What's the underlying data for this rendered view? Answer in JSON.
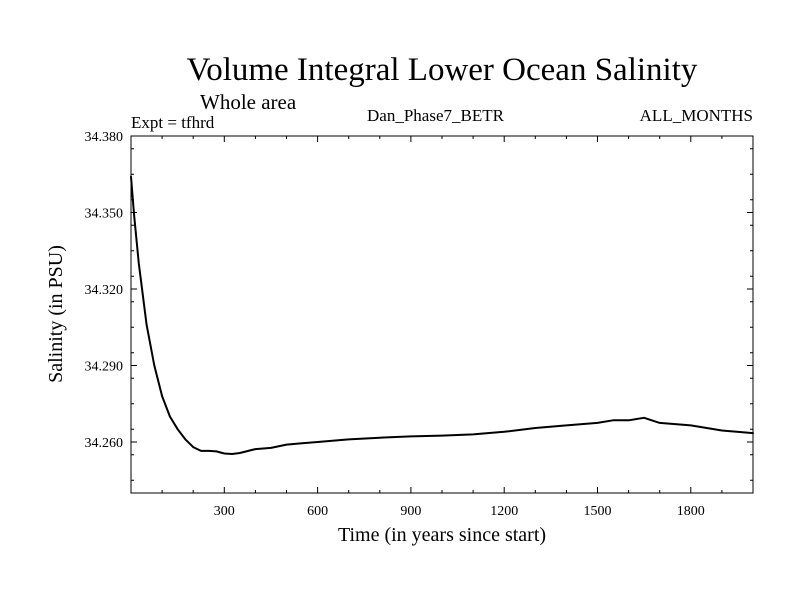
{
  "chart_data": {
    "type": "line",
    "title": "Volume Integral Lower Ocean Salinity",
    "subtitle": "Whole area",
    "experiment": "Expt = tfhrd",
    "run": "Dan_Phase7_BETR",
    "period": "ALL_MONTHS",
    "xlabel": "Time (in years since start)",
    "ylabel": "Salinity (in PSU)",
    "xlim": [
      0,
      2000
    ],
    "ylim": [
      34.24,
      34.38
    ],
    "xticks": [
      300,
      600,
      900,
      1200,
      1500,
      1800
    ],
    "xtick_labels": [
      "300",
      "600",
      "900",
      "1200",
      "1500",
      "1800"
    ],
    "yticks": [
      34.26,
      34.29,
      34.32,
      34.35,
      34.38
    ],
    "ytick_labels": [
      "34.260",
      "34.290",
      "34.320",
      "34.350",
      "34.380"
    ],
    "series": [
      {
        "name": "Salinity",
        "x": [
          0,
          10,
          25,
          50,
          75,
          100,
          125,
          150,
          175,
          200,
          225,
          250,
          275,
          300,
          325,
          350,
          400,
          450,
          500,
          550,
          600,
          700,
          800,
          900,
          1000,
          1100,
          1200,
          1300,
          1400,
          1500,
          1550,
          1600,
          1650,
          1700,
          1800,
          1900,
          2000
        ],
        "values": [
          34.364,
          34.349,
          34.33,
          34.306,
          34.29,
          34.278,
          34.27,
          34.265,
          34.261,
          34.258,
          34.2565,
          34.2565,
          34.2563,
          34.2555,
          34.2553,
          34.2557,
          34.2572,
          34.2577,
          34.259,
          34.2595,
          34.26,
          34.261,
          34.2617,
          34.2622,
          34.2625,
          34.263,
          34.264,
          34.2655,
          34.2665,
          34.2675,
          34.2685,
          34.2685,
          34.2695,
          34.2675,
          34.2665,
          34.2645,
          34.2635
        ]
      }
    ]
  }
}
